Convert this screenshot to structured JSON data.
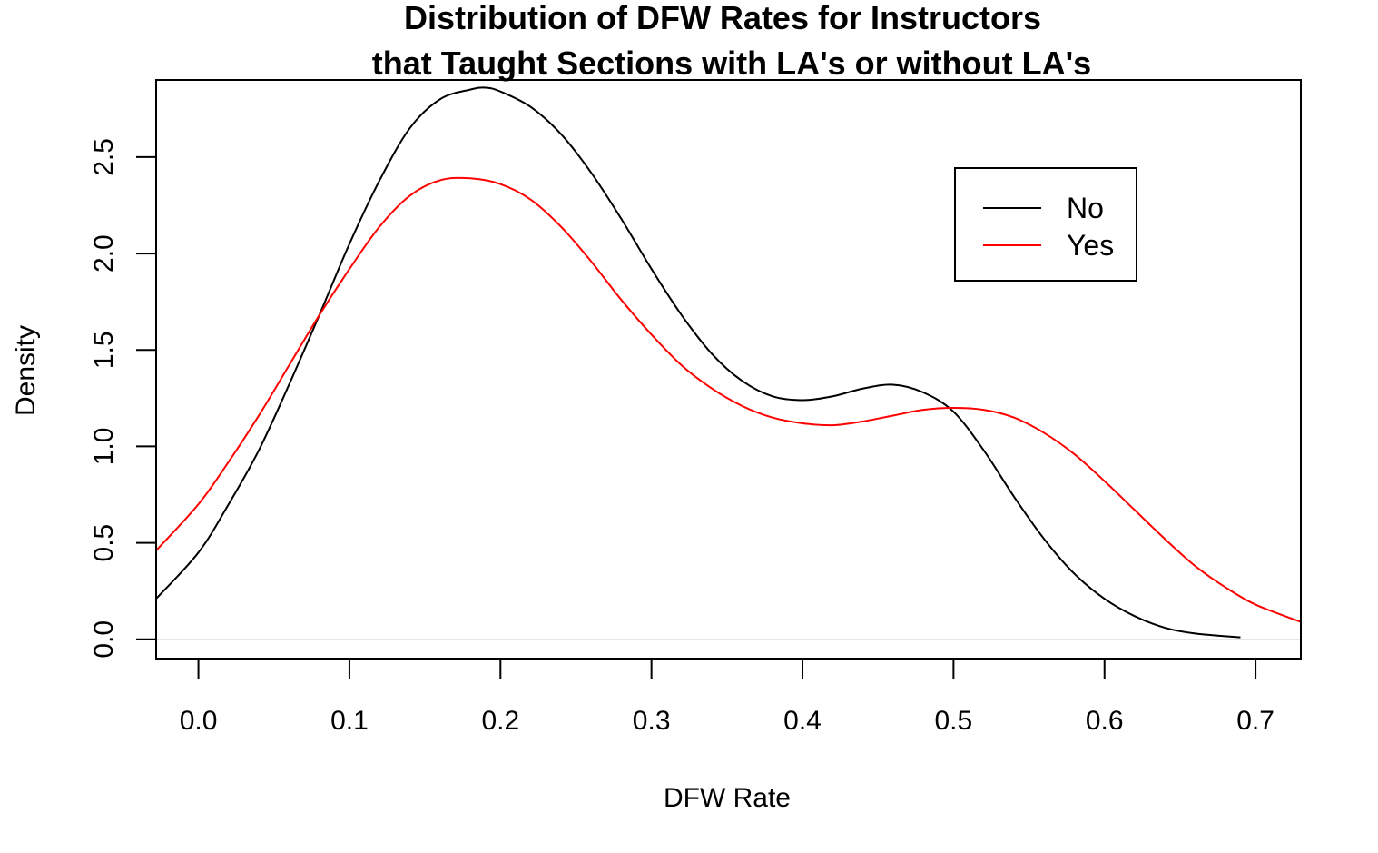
{
  "chart_data": {
    "type": "line",
    "title_lines": [
      "Distribution of DFW Rates for Instructors",
      "that Taught Sections with LA's or without LA's"
    ],
    "xlabel": "DFW Rate",
    "ylabel": "Density",
    "xlim": [
      -0.028,
      0.73
    ],
    "ylim": [
      -0.1,
      2.9
    ],
    "x_ticks": [
      0.0,
      0.1,
      0.2,
      0.3,
      0.4,
      0.5,
      0.6,
      0.7
    ],
    "x_tick_labels": [
      "0.0",
      "0.1",
      "0.2",
      "0.3",
      "0.4",
      "0.5",
      "0.6",
      "0.7"
    ],
    "y_ticks": [
      0.0,
      0.5,
      1.0,
      1.5,
      2.0,
      2.5
    ],
    "y_tick_labels": [
      "0.0",
      "0.5",
      "1.0",
      "1.5",
      "2.0",
      "2.5"
    ],
    "grid": false,
    "legend_position": "top-right",
    "series": [
      {
        "name": "No",
        "color": "#000000",
        "x": [
          -0.028,
          0.0,
          0.02,
          0.04,
          0.06,
          0.08,
          0.1,
          0.12,
          0.14,
          0.16,
          0.18,
          0.19,
          0.2,
          0.22,
          0.24,
          0.26,
          0.28,
          0.3,
          0.32,
          0.34,
          0.36,
          0.38,
          0.4,
          0.42,
          0.44,
          0.46,
          0.48,
          0.5,
          0.52,
          0.54,
          0.56,
          0.58,
          0.6,
          0.62,
          0.64,
          0.66,
          0.69
        ],
        "y": [
          0.21,
          0.45,
          0.7,
          0.98,
          1.32,
          1.68,
          2.05,
          2.38,
          2.65,
          2.8,
          2.85,
          2.86,
          2.84,
          2.76,
          2.62,
          2.42,
          2.18,
          1.92,
          1.68,
          1.48,
          1.34,
          1.26,
          1.24,
          1.26,
          1.3,
          1.32,
          1.28,
          1.18,
          0.98,
          0.74,
          0.52,
          0.34,
          0.21,
          0.12,
          0.06,
          0.03,
          0.01
        ]
      },
      {
        "name": "Yes",
        "color": "#ff0000",
        "x": [
          -0.028,
          0.0,
          0.02,
          0.04,
          0.06,
          0.08,
          0.1,
          0.12,
          0.14,
          0.16,
          0.18,
          0.2,
          0.22,
          0.24,
          0.26,
          0.28,
          0.3,
          0.32,
          0.34,
          0.36,
          0.38,
          0.4,
          0.42,
          0.44,
          0.46,
          0.48,
          0.5,
          0.52,
          0.54,
          0.56,
          0.58,
          0.6,
          0.62,
          0.64,
          0.66,
          0.68,
          0.7,
          0.73
        ],
        "y": [
          0.46,
          0.7,
          0.92,
          1.16,
          1.42,
          1.68,
          1.92,
          2.14,
          2.3,
          2.38,
          2.39,
          2.36,
          2.28,
          2.14,
          1.96,
          1.76,
          1.58,
          1.42,
          1.3,
          1.21,
          1.15,
          1.12,
          1.11,
          1.13,
          1.16,
          1.19,
          1.2,
          1.19,
          1.15,
          1.07,
          0.96,
          0.82,
          0.67,
          0.52,
          0.38,
          0.27,
          0.18,
          0.09
        ]
      }
    ]
  }
}
